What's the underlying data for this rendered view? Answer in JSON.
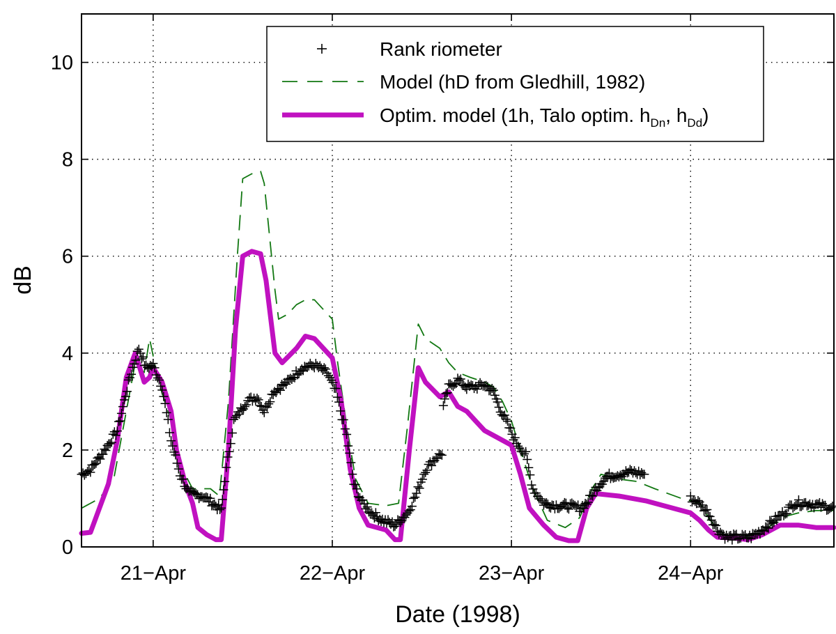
{
  "chart_data": {
    "type": "line",
    "title": "",
    "xlabel": "Date (1998)",
    "ylabel": "dB",
    "xlim": [
      20.6,
      24.8
    ],
    "ylim": [
      0,
      11
    ],
    "grid": true,
    "legend_position": "top-right",
    "x_ticks": [
      {
        "value": 21,
        "label": "21−Apr"
      },
      {
        "value": 22,
        "label": "22−Apr"
      },
      {
        "value": 23,
        "label": "23−Apr"
      },
      {
        "value": 24,
        "label": "24−Apr"
      }
    ],
    "y_ticks": [
      {
        "value": 0,
        "label": "0"
      },
      {
        "value": 2,
        "label": "2"
      },
      {
        "value": 4,
        "label": "4"
      },
      {
        "value": 6,
        "label": "6"
      },
      {
        "value": 8,
        "label": "8"
      },
      {
        "value": 10,
        "label": "10"
      }
    ],
    "series": [
      {
        "name": "Rank riometer",
        "style": "plus-markers",
        "color": "#000000",
        "legend_label": "Rank riometer",
        "anchors": [
          [
            20.6,
            1.5
          ],
          [
            20.65,
            1.6
          ],
          [
            20.72,
            1.95
          ],
          [
            20.8,
            2.4
          ],
          [
            20.87,
            3.5
          ],
          [
            20.92,
            4.1
          ],
          [
            20.96,
            3.7
          ],
          [
            21.0,
            3.75
          ],
          [
            21.05,
            3.3
          ],
          [
            21.1,
            2.2
          ],
          [
            21.15,
            1.5
          ],
          [
            21.2,
            1.1
          ],
          [
            21.28,
            1.05
          ],
          [
            21.35,
            0.85
          ],
          [
            21.38,
            0.75
          ],
          [
            21.4,
            1.4
          ],
          [
            21.45,
            2.6
          ],
          [
            21.52,
            3.0
          ],
          [
            21.58,
            3.1
          ],
          [
            21.62,
            2.8
          ],
          [
            21.67,
            3.2
          ],
          [
            21.75,
            3.4
          ],
          [
            21.83,
            3.7
          ],
          [
            21.9,
            3.75
          ],
          [
            21.97,
            3.6
          ],
          [
            22.02,
            3.2
          ],
          [
            22.08,
            2.3
          ],
          [
            22.12,
            1.3
          ],
          [
            22.17,
            0.9
          ],
          [
            22.22,
            0.7
          ],
          [
            22.28,
            0.55
          ],
          [
            22.35,
            0.45
          ],
          [
            22.42,
            0.7
          ],
          [
            22.47,
            1.1
          ],
          [
            22.52,
            1.6
          ],
          [
            22.58,
            1.85
          ],
          [
            22.62,
            1.95
          ]
        ],
        "anchors_b": [
          [
            22.62,
            2.9
          ],
          [
            22.65,
            3.3
          ],
          [
            22.7,
            3.45
          ],
          [
            22.75,
            3.3
          ],
          [
            22.8,
            3.3
          ],
          [
            22.85,
            3.35
          ],
          [
            22.9,
            3.2
          ],
          [
            22.93,
            2.9
          ],
          [
            22.97,
            2.6
          ],
          [
            23.02,
            2.2
          ],
          [
            23.08,
            1.9
          ],
          [
            23.12,
            1.2
          ],
          [
            23.18,
            0.9
          ],
          [
            23.25,
            0.85
          ],
          [
            23.32,
            0.85
          ],
          [
            23.38,
            0.8
          ],
          [
            23.42,
            0.9
          ],
          [
            23.47,
            1.2
          ],
          [
            23.53,
            1.45
          ],
          [
            23.6,
            1.5
          ],
          [
            23.67,
            1.55
          ],
          [
            23.75,
            1.5
          ]
        ],
        "anchors_c": [
          [
            24.0,
            1.0
          ],
          [
            24.05,
            0.9
          ],
          [
            24.1,
            0.7
          ],
          [
            24.15,
            0.35
          ],
          [
            24.2,
            0.2
          ],
          [
            24.28,
            0.2
          ],
          [
            24.33,
            0.2
          ],
          [
            24.38,
            0.3
          ],
          [
            24.45,
            0.5
          ],
          [
            24.52,
            0.7
          ],
          [
            24.58,
            0.9
          ],
          [
            24.65,
            0.9
          ],
          [
            24.72,
            0.85
          ],
          [
            24.8,
            0.8
          ]
        ]
      },
      {
        "name": "Model (hD from Gledhill, 1982)",
        "style": "dashed",
        "color": "#117711",
        "legend_label": "Model (hD from Gledhill, 1982)",
        "points": [
          [
            20.6,
            0.8
          ],
          [
            20.7,
            1.0
          ],
          [
            20.78,
            1.4
          ],
          [
            20.85,
            2.8
          ],
          [
            20.9,
            3.8
          ],
          [
            20.95,
            3.6
          ],
          [
            20.98,
            4.3
          ],
          [
            21.03,
            3.4
          ],
          [
            21.1,
            2.6
          ],
          [
            21.15,
            1.7
          ],
          [
            21.22,
            1.2
          ],
          [
            21.32,
            1.2
          ],
          [
            21.37,
            1.05
          ],
          [
            21.42,
            3.0
          ],
          [
            21.47,
            6.0
          ],
          [
            21.5,
            7.6
          ],
          [
            21.55,
            7.7
          ],
          [
            21.6,
            7.75
          ],
          [
            21.62,
            7.5
          ],
          [
            21.68,
            5.3
          ],
          [
            21.7,
            4.7
          ],
          [
            21.75,
            4.8
          ],
          [
            21.8,
            5.0
          ],
          [
            21.85,
            5.1
          ],
          [
            21.9,
            5.1
          ],
          [
            21.95,
            4.9
          ],
          [
            22.0,
            4.7
          ],
          [
            22.03,
            3.8
          ],
          [
            22.08,
            2.5
          ],
          [
            22.13,
            1.4
          ],
          [
            22.2,
            0.9
          ],
          [
            22.3,
            0.85
          ],
          [
            22.37,
            0.9
          ],
          [
            22.42,
            2.5
          ],
          [
            22.48,
            4.6
          ],
          [
            22.52,
            4.3
          ],
          [
            22.6,
            4.1
          ],
          [
            22.65,
            3.8
          ],
          [
            22.7,
            3.6
          ],
          [
            22.77,
            3.5
          ],
          [
            22.85,
            3.4
          ],
          [
            22.9,
            3.3
          ],
          [
            22.95,
            3.0
          ],
          [
            23.0,
            2.6
          ],
          [
            23.05,
            2.0
          ],
          [
            23.12,
            1.2
          ],
          [
            23.2,
            0.55
          ],
          [
            23.3,
            0.4
          ],
          [
            23.38,
            0.6
          ],
          [
            23.45,
            1.2
          ],
          [
            23.5,
            1.5
          ],
          [
            23.6,
            1.4
          ],
          [
            23.7,
            1.35
          ],
          [
            23.8,
            1.2
          ],
          [
            23.95,
            1.0
          ],
          [
            24.05,
            0.9
          ],
          [
            24.12,
            0.5
          ],
          [
            24.2,
            0.2
          ],
          [
            24.3,
            0.2
          ],
          [
            24.4,
            0.3
          ],
          [
            24.5,
            0.6
          ],
          [
            24.6,
            0.7
          ],
          [
            24.7,
            0.75
          ],
          [
            24.8,
            0.75
          ]
        ]
      },
      {
        "name": "Optim. model",
        "style": "thick-solid",
        "color": "#c011c0",
        "legend_label": "Optim. model (1h, Talo optim. h",
        "legend_sub1": "Dn",
        "legend_mid": ", h",
        "legend_sub2": "Dd",
        "legend_end": ")",
        "points": [
          [
            20.6,
            0.28
          ],
          [
            20.65,
            0.3
          ],
          [
            20.7,
            0.8
          ],
          [
            20.75,
            1.3
          ],
          [
            20.8,
            2.2
          ],
          [
            20.85,
            3.5
          ],
          [
            20.9,
            4.0
          ],
          [
            20.95,
            3.4
          ],
          [
            20.98,
            3.5
          ],
          [
            21.0,
            3.7
          ],
          [
            21.05,
            3.4
          ],
          [
            21.1,
            2.8
          ],
          [
            21.13,
            2.0
          ],
          [
            21.18,
            1.3
          ],
          [
            21.22,
            0.9
          ],
          [
            21.25,
            0.4
          ],
          [
            21.3,
            0.25
          ],
          [
            21.35,
            0.15
          ],
          [
            21.38,
            0.15
          ],
          [
            21.42,
            2.0
          ],
          [
            21.46,
            4.5
          ],
          [
            21.5,
            6.0
          ],
          [
            21.55,
            6.1
          ],
          [
            21.6,
            6.05
          ],
          [
            21.63,
            5.5
          ],
          [
            21.68,
            4.0
          ],
          [
            21.72,
            3.8
          ],
          [
            21.8,
            4.1
          ],
          [
            21.85,
            4.35
          ],
          [
            21.9,
            4.3
          ],
          [
            21.95,
            4.1
          ],
          [
            22.0,
            3.9
          ],
          [
            22.05,
            3.0
          ],
          [
            22.1,
            1.6
          ],
          [
            22.15,
            0.8
          ],
          [
            22.2,
            0.45
          ],
          [
            22.3,
            0.35
          ],
          [
            22.35,
            0.15
          ],
          [
            22.38,
            0.15
          ],
          [
            22.43,
            2.0
          ],
          [
            22.48,
            3.7
          ],
          [
            22.52,
            3.4
          ],
          [
            22.6,
            3.1
          ],
          [
            22.65,
            3.2
          ],
          [
            22.7,
            2.9
          ],
          [
            22.75,
            2.8
          ],
          [
            22.8,
            2.6
          ],
          [
            22.85,
            2.4
          ],
          [
            22.9,
            2.3
          ],
          [
            22.95,
            2.2
          ],
          [
            23.0,
            2.1
          ],
          [
            23.05,
            1.5
          ],
          [
            23.1,
            0.8
          ],
          [
            23.18,
            0.45
          ],
          [
            23.25,
            0.2
          ],
          [
            23.32,
            0.13
          ],
          [
            23.37,
            0.13
          ],
          [
            23.42,
            0.8
          ],
          [
            23.47,
            1.1
          ],
          [
            23.6,
            1.05
          ],
          [
            23.75,
            0.95
          ],
          [
            24.0,
            0.7
          ],
          [
            24.05,
            0.55
          ],
          [
            24.1,
            0.35
          ],
          [
            24.15,
            0.2
          ],
          [
            24.25,
            0.18
          ],
          [
            24.32,
            0.15
          ],
          [
            24.4,
            0.25
          ],
          [
            24.5,
            0.45
          ],
          [
            24.6,
            0.45
          ],
          [
            24.7,
            0.4
          ],
          [
            24.8,
            0.4
          ]
        ]
      }
    ]
  }
}
